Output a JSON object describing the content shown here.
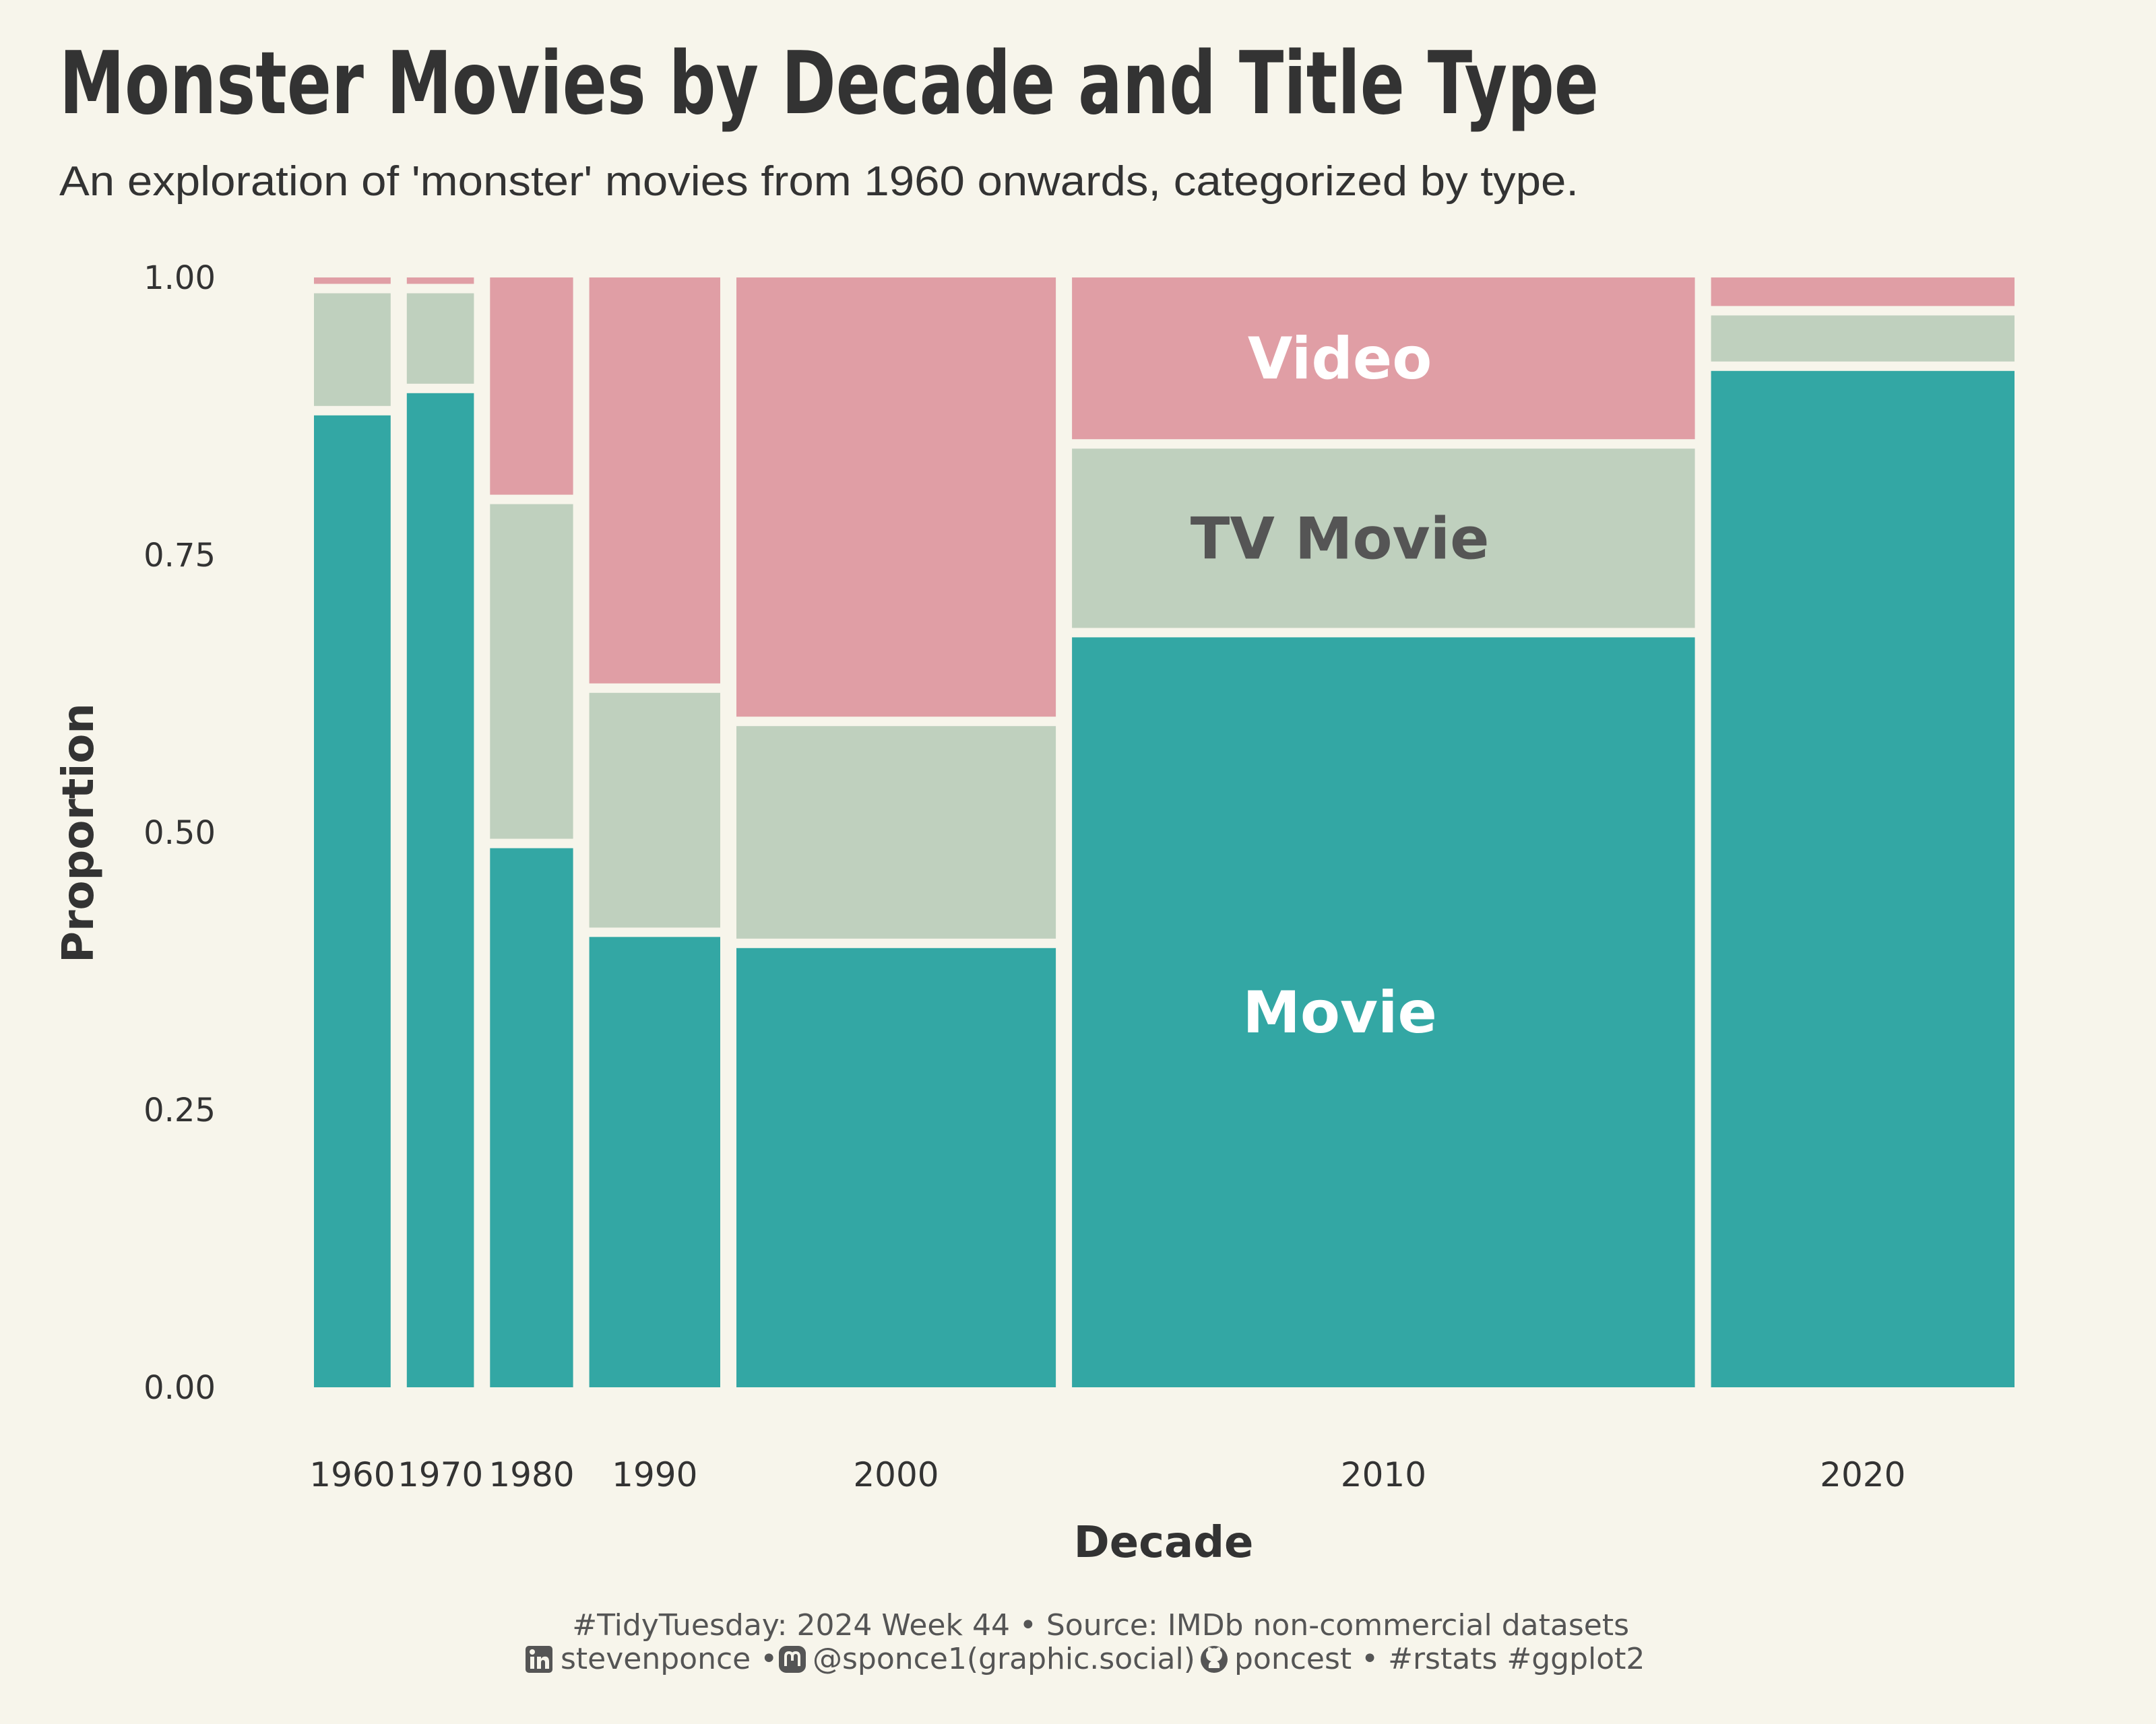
{
  "title": "Monster Movies by Decade and Title Type",
  "subtitle": "An exploration of 'monster' movies from 1960 onwards, categorized by type.",
  "caption": {
    "line1": "#TidyTuesday: 2024 Week 44 • Source: IMDb non-commercial datasets",
    "line2_parts": [
      {
        "icon": "linkedin-icon",
        "text": "stevenponce •"
      },
      {
        "icon": "mastodon-icon",
        "text": "@sponce1(graphic.social)"
      },
      {
        "icon": "github-icon",
        "text": "poncest • #rstats #ggplot2"
      }
    ]
  },
  "colors": {
    "background": "#f7f5eb",
    "movie": "#33a7a4",
    "tv_movie": "#bfd0be",
    "video": "#e09ea5",
    "text": "#333333",
    "tv_label": "#555555",
    "light_label": "#ffffff"
  },
  "chart_data": {
    "type": "mosaic",
    "xlabel": "Decade",
    "ylabel": "Proportion",
    "ylim": [
      0,
      1
    ],
    "yticks": [
      "0.00",
      "0.25",
      "0.50",
      "0.75",
      "1.00"
    ],
    "categories": [
      "1960",
      "1970",
      "1980",
      "1990",
      "2000",
      "2010",
      "2020"
    ],
    "widths": [
      0.048,
      0.042,
      0.052,
      0.082,
      0.2,
      0.39,
      0.19
    ],
    "series": [
      {
        "name": "Movie",
        "values": [
          0.88,
          0.9,
          0.49,
          0.41,
          0.4,
          0.68,
          0.92
        ]
      },
      {
        "name": "TV Movie",
        "values": [
          0.11,
          0.09,
          0.31,
          0.22,
          0.2,
          0.17,
          0.05
        ]
      },
      {
        "name": "Video",
        "values": [
          0.01,
          0.01,
          0.2,
          0.37,
          0.4,
          0.15,
          0.03
        ]
      }
    ],
    "segment_labels_on": "2010",
    "legend": "none",
    "grid": false
  }
}
